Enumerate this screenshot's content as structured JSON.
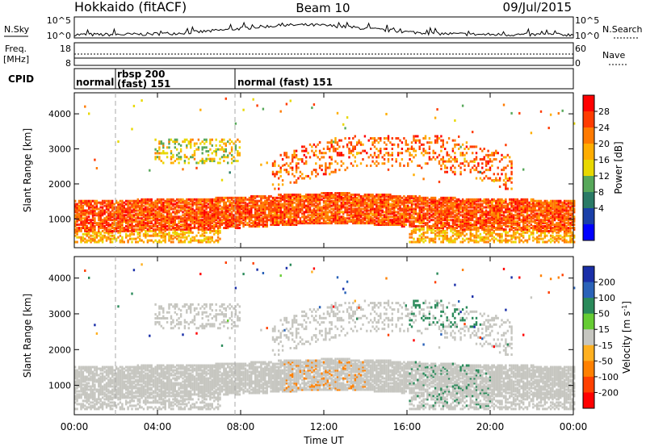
{
  "header": {
    "station": "Hokkaido (fitACF)",
    "beam": "Beam 10",
    "date": "09/Jul/2015"
  },
  "noise_panel": {
    "left_label": "N.Sky",
    "right_label": "N.Search",
    "left_ticks": [
      "10^5",
      "10^0"
    ],
    "right_ticks": [
      "10^5",
      "10^0"
    ]
  },
  "freq_panel": {
    "left_label_1": "Freq.",
    "left_label_2": "[MHz]",
    "right_label": "Nave",
    "left_ticks": [
      "18",
      "8"
    ],
    "right_ticks": [
      "60",
      "0"
    ]
  },
  "cpid_panel": {
    "label": "CPID",
    "segments": [
      {
        "text": "normal",
        "start_h": 0
      },
      {
        "text_1": "rbsp 200",
        "text_2": "(fast) 151",
        "start_h": 2
      },
      {
        "text": "normal (fast)  151",
        "start_h": 8
      }
    ]
  },
  "power_colorbar": {
    "title": "Power [dB]",
    "ticks": [
      "28",
      "24",
      "20",
      "16",
      "12",
      "8",
      "4"
    ],
    "colors": [
      "#ff0000",
      "#ff3b00",
      "#ff7a00",
      "#ffad00",
      "#e8d800",
      "#57a85a",
      "#2a7a66",
      "#1a3fa8",
      "#0000ff"
    ]
  },
  "velocity_colorbar": {
    "title_1": "Velocity [m s",
    "title_sup": "-1",
    "title_2": "]",
    "ticks": [
      "200",
      "100",
      "50",
      "15",
      "-15",
      "-50",
      "-100",
      "-200"
    ],
    "colors": [
      "#1a2fa8",
      "#2a62b8",
      "#2a8a5a",
      "#66cc33",
      "#c6c6c0",
      "#ffb020",
      "#ff8000",
      "#ff4000",
      "#ff0000"
    ]
  },
  "chart_data": [
    {
      "type": "heatmap",
      "title": "Power",
      "ylabel": "Slant Range [km]",
      "xlabel": "Time UT",
      "xlim_h": [
        0,
        24
      ],
      "ylim_km": [
        180,
        4600
      ],
      "yticks": [
        "1000",
        "2000",
        "3000",
        "4000"
      ],
      "xticks": [
        "00:00",
        "04:00",
        "08:00",
        "12:00",
        "16:00",
        "20:00",
        "00:00"
      ],
      "scatter_bands": [
        {
          "t": [
            0,
            24
          ],
          "r": [
            450,
            1750
          ],
          "level": 24,
          "desc": "main E/F region band"
        },
        {
          "t": [
            4,
            8
          ],
          "r": [
            2700,
            3300
          ],
          "level": 16
        },
        {
          "t": [
            10,
            20
          ],
          "r": [
            1800,
            3300
          ],
          "level": 24
        }
      ]
    },
    {
      "type": "heatmap",
      "title": "Velocity",
      "ylabel": "Slant Range [km]",
      "xlabel": "Time UT",
      "xlim_h": [
        0,
        24
      ],
      "ylim_km": [
        180,
        4600
      ],
      "yticks": [
        "1000",
        "2000",
        "3000",
        "4000"
      ],
      "xticks": [
        "00:00",
        "04:00",
        "08:00",
        "12:00",
        "16:00",
        "20:00",
        "00:00"
      ],
      "scatter_bands": [
        {
          "t": [
            0,
            24
          ],
          "r": [
            450,
            1750
          ],
          "velocity": 0,
          "desc": "mostly ground scatter"
        },
        {
          "t": [
            16,
            19
          ],
          "r": [
            2600,
            3200
          ],
          "velocity": 40
        },
        {
          "t": [
            10,
            14
          ],
          "r": [
            900,
            1500
          ],
          "velocity": -40
        }
      ]
    }
  ]
}
